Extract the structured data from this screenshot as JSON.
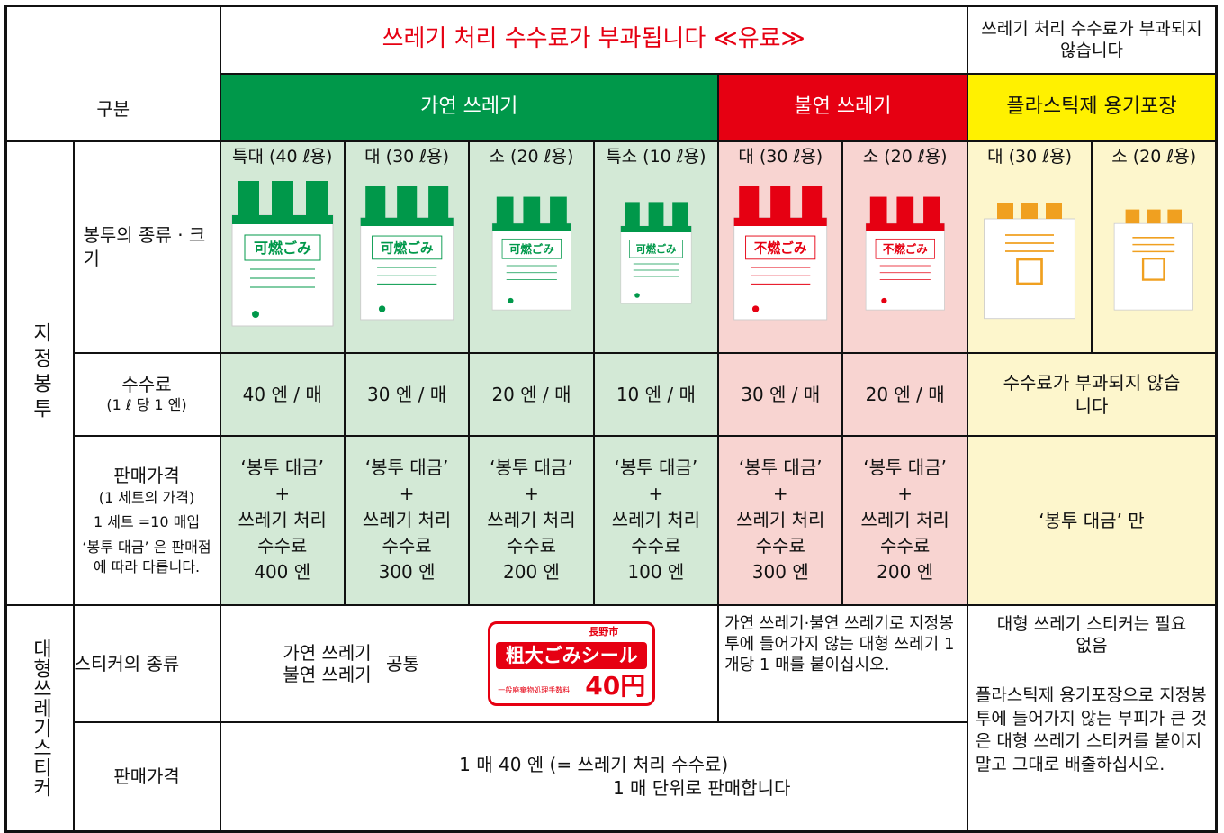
{
  "header": {
    "category_label": "구분",
    "paid_title": "쓰레기 처리 수수료가 부과됩니다 ≪유료≫",
    "free_title": "쓰레기 처리 수수료가 부과되지 않습니다",
    "categories": [
      "가연 쓰레기",
      "불연 쓰레기",
      "플라스틱제 용기포장"
    ]
  },
  "designated_bag": {
    "label": "지정봉투",
    "type_label": "봉투의 종류 · 크기",
    "sizes": [
      "특대 (40 ℓ용)",
      "대 (30 ℓ용)",
      "소 (20 ℓ용)",
      "특소 (10 ℓ용)",
      "대 (30 ℓ용)",
      "소 (20 ℓ용)",
      "대 (30 ℓ용)",
      "소 (20 ℓ용)"
    ],
    "bag_marks": [
      "可燃ごみ",
      "不燃ごみ"
    ],
    "fee_label": "수수료",
    "fee_note": "(1 ℓ 당 1 엔)",
    "fees": [
      "40 엔 / 매",
      "30 엔 / 매",
      "20 엔 / 매",
      "10 엔 / 매",
      "30 엔 / 매",
      "20 엔 / 매"
    ],
    "plastic_fee": "수수료가 부과되지 않습니다",
    "price_label": "판매가격",
    "price_note": "(1 세트의 가격)",
    "set_note": "1 세트 =10 매입",
    "shop_note": "‘봉투 대금’ 은 판매점에 따라 다릅니다.",
    "prices": [
      [
        "‘봉투 대금’",
        "+",
        "쓰레기 처리",
        "수수료",
        "400 엔"
      ],
      [
        "‘봉투 대금’",
        "+",
        "쓰레기 처리",
        "수수료",
        "300 엔"
      ],
      [
        "‘봉투 대금’",
        "+",
        "쓰레기 처리",
        "수수료",
        "200 엔"
      ],
      [
        "‘봉투 대금’",
        "+",
        "쓰레기 처리",
        "수수료",
        "100 엔"
      ],
      [
        "‘봉투 대금’",
        "+",
        "쓰레기 처리",
        "수수료",
        "300 엔"
      ],
      [
        "‘봉투 대금’",
        "+",
        "쓰레기 처리",
        "수수료",
        "200 엔"
      ]
    ],
    "plastic_price": "‘봉투 대금’ 만"
  },
  "sticker": {
    "label": "대형쓰레기스티커",
    "type_label": "스티커의 종류",
    "kinds": [
      "가연 쓰레기",
      "불연 쓰레기"
    ],
    "common": "공통",
    "image": {
      "city": "長野市",
      "name": "粗大ごみシール",
      "fee_label": "一般廃棄物処理手数料",
      "price": "40円"
    },
    "note": "가연 쓰레기·불연 쓰레기로 지정봉투에 들어가지 않는 대형 쓰레기 1 개당 1 매를 붙이십시오.",
    "plastic_note": "대형 쓰레기 스티커는 필요 없음",
    "plastic_detail": "플라스틱제 용기포장으로 지정봉투에 들어가지 않는 부피가 큰 것은 대형 쓰레기 스티커를 붙이지 말고 그대로 배출하십시오.",
    "price_label": "판매가격",
    "price": "1 매 40 엔 (= 쓰레기 처리 수수료)",
    "unit": "1 매 단위로 판매합니다"
  }
}
